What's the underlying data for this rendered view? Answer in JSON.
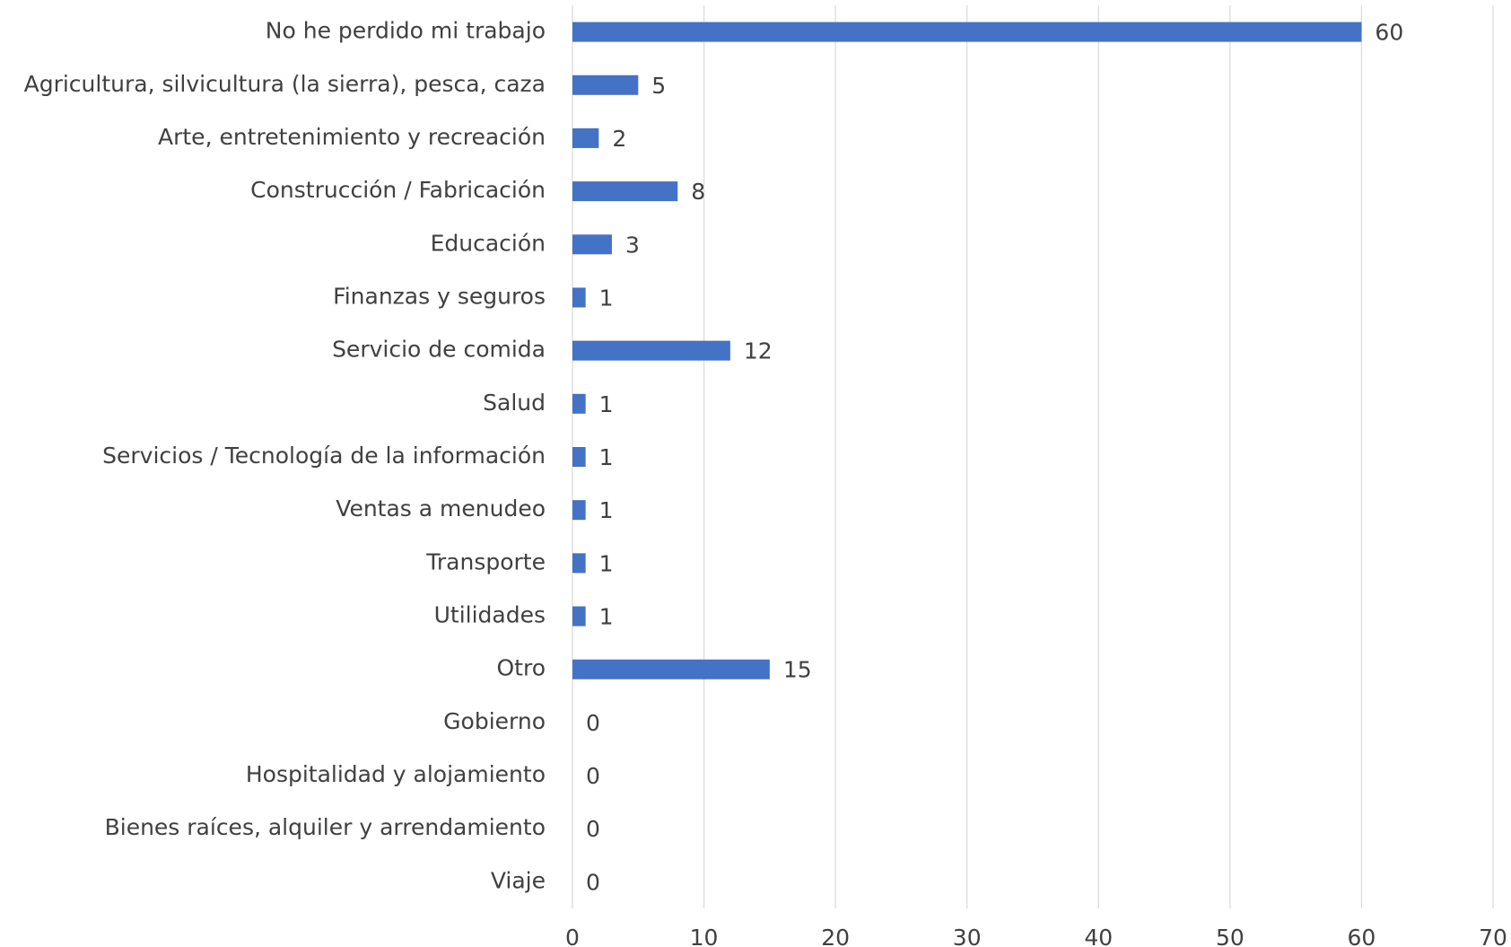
{
  "chart_data": {
    "type": "bar",
    "orientation": "horizontal",
    "categories": [
      "No he perdido mi trabajo",
      "Agricultura, silvicultura (la sierra), pesca, caza",
      "Arte, entretenimiento y recreación",
      "Construcción / Fabricación",
      "Educación",
      "Finanzas y seguros",
      "Servicio de comida",
      "Salud",
      "Servicios / Tecnología de la información",
      "Ventas a menudeo",
      "Transporte",
      "Utilidades",
      "Otro",
      "Gobierno",
      "Hospitalidad y alojamiento",
      "Bienes raíces, alquiler y arrendamiento",
      "Viaje"
    ],
    "values": [
      60,
      5,
      2,
      8,
      3,
      1,
      12,
      1,
      1,
      1,
      1,
      1,
      15,
      0,
      0,
      0,
      0
    ],
    "color": "#4472c4",
    "xlim": [
      0,
      70
    ],
    "xticks": [
      0,
      10,
      20,
      30,
      40,
      50,
      60,
      70
    ],
    "grid": true
  }
}
